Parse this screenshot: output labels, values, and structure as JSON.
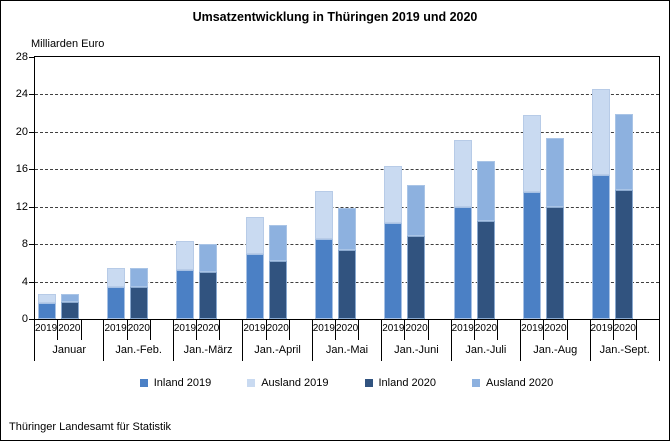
{
  "chart_data": {
    "type": "bar",
    "stacked": true,
    "title": "Umsatzentwicklung in Thüringen 2019 und 2020",
    "unit_label": "Milliarden Euro",
    "categories": [
      "Januar",
      "Jan.-Feb.",
      "Jan.-März",
      "Jan.-April",
      "Jan.-Mai",
      "Jan.-Juni",
      "Jan.-Juli",
      "Jan.-Aug",
      "Jan.-Sept."
    ],
    "sub_categories": [
      "2019",
      "2020"
    ],
    "yticks": [
      0,
      4,
      8,
      12,
      16,
      20,
      24,
      28
    ],
    "ylim": [
      0,
      28
    ],
    "grid": "horizontal-dashed",
    "legend_position": "bottom",
    "series": [
      {
        "name": "Inland 2019",
        "color": "#4b80c5",
        "border": "#a7c1e4",
        "stack": "2019",
        "values": [
          1.7,
          3.4,
          5.2,
          7.0,
          8.6,
          10.3,
          12.0,
          13.6,
          15.4
        ]
      },
      {
        "name": "Ausland 2019",
        "color": "#c9daf1",
        "border": "#b7cbe7",
        "stack": "2019",
        "values": [
          1.0,
          2.0,
          3.1,
          3.9,
          5.1,
          6.1,
          7.1,
          8.2,
          9.2
        ]
      },
      {
        "name": "Inland 2020",
        "color": "#31537f",
        "border": "#8aa9cf",
        "stack": "2020",
        "values": [
          1.8,
          3.4,
          5.0,
          6.2,
          7.4,
          8.9,
          10.5,
          12.0,
          13.8
        ]
      },
      {
        "name": "Ausland 2020",
        "color": "#8db1df",
        "border": "#a9c4e6",
        "stack": "2020",
        "values": [
          0.9,
          2.0,
          3.0,
          3.8,
          4.5,
          5.4,
          6.4,
          7.3,
          8.1
        ]
      }
    ],
    "stacks": [
      [
        "Inland 2019",
        "Ausland 2019"
      ],
      [
        "Inland 2020",
        "Ausland 2020"
      ]
    ]
  },
  "footer": {
    "source": "Thüringer Landesamt für Statistik"
  }
}
